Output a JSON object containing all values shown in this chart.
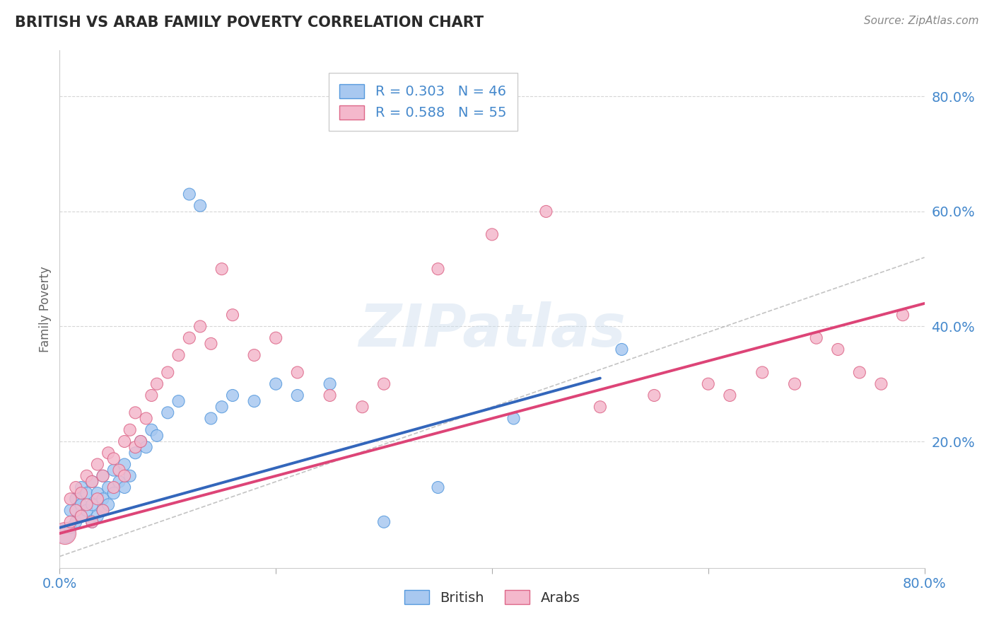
{
  "title": "BRITISH VS ARAB FAMILY POVERTY CORRELATION CHART",
  "source": "Source: ZipAtlas.com",
  "ylabel": "Family Poverty",
  "ytick_labels": [
    "20.0%",
    "40.0%",
    "60.0%",
    "80.0%"
  ],
  "ytick_values": [
    0.2,
    0.4,
    0.6,
    0.8
  ],
  "xrange": [
    0.0,
    0.8
  ],
  "yrange": [
    -0.02,
    0.88
  ],
  "legend_british_r": "R = 0.303",
  "legend_british_n": "N = 46",
  "legend_arab_r": "R = 0.588",
  "legend_arab_n": "N = 55",
  "british_color": "#a8c8f0",
  "arab_color": "#f4b8cc",
  "british_edge_color": "#5599dd",
  "arab_edge_color": "#dd6688",
  "british_line_color": "#3366bb",
  "arab_line_color": "#dd4477",
  "trend_line_color": "#99bbdd",
  "background_color": "#ffffff",
  "grid_color": "#cccccc",
  "title_color": "#2a2a2a",
  "axis_color": "#4488cc",
  "british_x": [
    0.005,
    0.01,
    0.01,
    0.015,
    0.015,
    0.02,
    0.02,
    0.02,
    0.025,
    0.025,
    0.03,
    0.03,
    0.03,
    0.035,
    0.035,
    0.04,
    0.04,
    0.04,
    0.045,
    0.045,
    0.05,
    0.05,
    0.055,
    0.06,
    0.06,
    0.065,
    0.07,
    0.075,
    0.08,
    0.085,
    0.09,
    0.1,
    0.11,
    0.12,
    0.13,
    0.14,
    0.15,
    0.16,
    0.18,
    0.2,
    0.22,
    0.25,
    0.3,
    0.35,
    0.42,
    0.52
  ],
  "british_y": [
    0.04,
    0.05,
    0.08,
    0.06,
    0.1,
    0.07,
    0.09,
    0.12,
    0.08,
    0.11,
    0.06,
    0.09,
    0.13,
    0.07,
    0.11,
    0.1,
    0.08,
    0.14,
    0.09,
    0.12,
    0.11,
    0.15,
    0.13,
    0.12,
    0.16,
    0.14,
    0.18,
    0.2,
    0.19,
    0.22,
    0.21,
    0.25,
    0.27,
    0.63,
    0.61,
    0.24,
    0.26,
    0.28,
    0.27,
    0.3,
    0.28,
    0.3,
    0.06,
    0.12,
    0.24,
    0.36
  ],
  "british_sizes": [
    400,
    150,
    150,
    150,
    150,
    150,
    150,
    150,
    150,
    150,
    150,
    150,
    150,
    150,
    150,
    150,
    150,
    150,
    150,
    150,
    150,
    150,
    150,
    150,
    150,
    150,
    150,
    150,
    150,
    150,
    150,
    150,
    150,
    150,
    150,
    150,
    150,
    150,
    150,
    150,
    150,
    150,
    150,
    150,
    150,
    150
  ],
  "arab_x": [
    0.005,
    0.01,
    0.01,
    0.015,
    0.015,
    0.02,
    0.02,
    0.025,
    0.025,
    0.03,
    0.03,
    0.035,
    0.035,
    0.04,
    0.04,
    0.045,
    0.05,
    0.05,
    0.055,
    0.06,
    0.06,
    0.065,
    0.07,
    0.07,
    0.075,
    0.08,
    0.085,
    0.09,
    0.1,
    0.11,
    0.12,
    0.13,
    0.14,
    0.15,
    0.16,
    0.18,
    0.2,
    0.22,
    0.25,
    0.28,
    0.3,
    0.35,
    0.4,
    0.45,
    0.5,
    0.55,
    0.6,
    0.62,
    0.65,
    0.68,
    0.7,
    0.72,
    0.74,
    0.76,
    0.78
  ],
  "arab_y": [
    0.04,
    0.06,
    0.1,
    0.08,
    0.12,
    0.07,
    0.11,
    0.09,
    0.14,
    0.06,
    0.13,
    0.1,
    0.16,
    0.08,
    0.14,
    0.18,
    0.12,
    0.17,
    0.15,
    0.14,
    0.2,
    0.22,
    0.19,
    0.25,
    0.2,
    0.24,
    0.28,
    0.3,
    0.32,
    0.35,
    0.38,
    0.4,
    0.37,
    0.5,
    0.42,
    0.35,
    0.38,
    0.32,
    0.28,
    0.26,
    0.3,
    0.5,
    0.56,
    0.6,
    0.26,
    0.28,
    0.3,
    0.28,
    0.32,
    0.3,
    0.38,
    0.36,
    0.32,
    0.3,
    0.42
  ],
  "arab_sizes": [
    500,
    150,
    150,
    150,
    150,
    150,
    150,
    150,
    150,
    150,
    150,
    150,
    150,
    150,
    150,
    150,
    150,
    150,
    150,
    150,
    150,
    150,
    150,
    150,
    150,
    150,
    150,
    150,
    150,
    150,
    150,
    150,
    150,
    150,
    150,
    150,
    150,
    150,
    150,
    150,
    150,
    150,
    150,
    150,
    150,
    150,
    150,
    150,
    150,
    150,
    150,
    150,
    150,
    150,
    150
  ],
  "british_trend_x": [
    0.0,
    0.5
  ],
  "british_trend_y": [
    0.05,
    0.31
  ],
  "arab_trend_x": [
    0.0,
    0.8
  ],
  "arab_trend_y": [
    0.04,
    0.44
  ],
  "ref_line_x": [
    0.0,
    0.8
  ],
  "ref_line_y": [
    0.0,
    0.52
  ]
}
